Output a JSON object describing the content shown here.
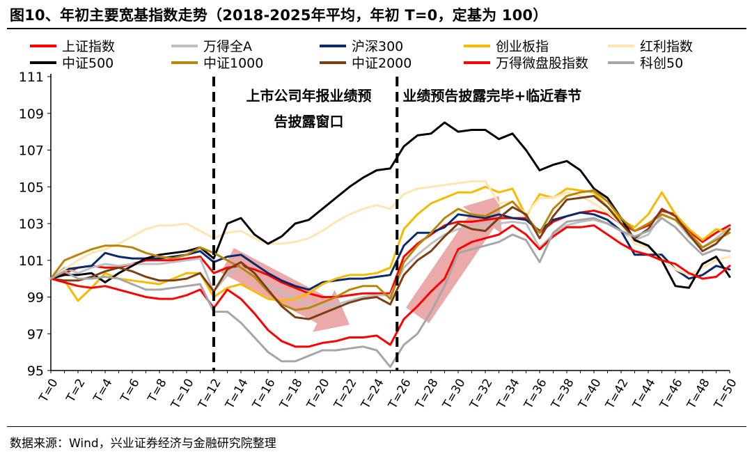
{
  "title": "图10、年初主要宽基指数走势（2018-2025年平均，年初 T=0，定基为 100）",
  "source": "数据来源：Wind，兴业证券经济与金融研究院整理",
  "chart_data": {
    "type": "line",
    "title": "图10、年初主要宽基指数走势（2018-2025年平均，年初 T=0，定基为 100）",
    "xlabel": "",
    "ylabel": "",
    "ylim": [
      95,
      111
    ],
    "yticks": [
      95,
      97,
      99,
      101,
      103,
      105,
      107,
      109,
      111
    ],
    "x": [
      "T=0",
      "T=1",
      "T=2",
      "T=3",
      "T=4",
      "T=5",
      "T=6",
      "T=7",
      "T=8",
      "T=9",
      "T=10",
      "T=11",
      "T=12",
      "T=13",
      "T=14",
      "T=15",
      "T=16",
      "T=17",
      "T=18",
      "T=19",
      "T=20",
      "T=21",
      "T=22",
      "T=23",
      "T=24",
      "T=25",
      "T=26",
      "T=27",
      "T=28",
      "T=29",
      "T=30",
      "T=31",
      "T=32",
      "T=33",
      "T=34",
      "T=35",
      "T=36",
      "T=37",
      "T=38",
      "T=39",
      "T=40",
      "T=41",
      "T=42",
      "T=43",
      "T=44",
      "T=45",
      "T=46",
      "T=47",
      "T=48",
      "T=49",
      "T=50"
    ],
    "xtick_labels": [
      "T=0",
      "T=2",
      "T=4",
      "T=6",
      "T=8",
      "T=10",
      "T=12",
      "T=14",
      "T=16",
      "T=18",
      "T=20",
      "T=22",
      "T=24",
      "T=26",
      "T=28",
      "T=30",
      "T=32",
      "T=34",
      "T=36",
      "T=38",
      "T=40",
      "T=42",
      "T=44",
      "T=46",
      "T=48",
      "T=50"
    ],
    "grid": false,
    "legend": "top",
    "vlines": [
      12,
      25.5
    ],
    "annotations": [
      {
        "text": "上市公司年报业绩预",
        "x": 19,
        "y": 110
      },
      {
        "text": "告披露窗口",
        "x": 19,
        "y": 108.6
      },
      {
        "text": "业绩预告披露完毕+临近春节",
        "x": 32.5,
        "y": 110
      }
    ],
    "arrows": [
      {
        "color": "#e79a9a",
        "from": [
          13,
          101
        ],
        "to": [
          22,
          97.5
        ]
      },
      {
        "color": "#e79a9a",
        "from": [
          27,
          98
        ],
        "to": [
          33,
          104.5
        ]
      }
    ],
    "series": [
      {
        "name": "上证指数",
        "color": "#ff0000",
        "width": 3,
        "values": [
          100,
          100.3,
          100.6,
          100.7,
          100.6,
          100.6,
          100.8,
          101.0,
          101.0,
          101.0,
          101.1,
          101.2,
          100.3,
          100.6,
          100.7,
          100.5,
          100.2,
          99.8,
          99.5,
          99.2,
          99.0,
          99.0,
          99.1,
          99.2,
          99.2,
          99.2,
          101.2,
          101.9,
          102.4,
          102.9,
          103.1,
          103.1,
          103.2,
          103.3,
          103.3,
          103.3,
          102.5,
          103.1,
          103.4,
          103.6,
          103.7,
          103.5,
          103.0,
          102.6,
          102.9,
          103.7,
          103.5,
          102.6,
          102.0,
          102.5,
          102.9
        ]
      },
      {
        "name": "万得全A",
        "color": "#bfbfbf",
        "width": 3,
        "values": [
          100,
          100.6,
          100.3,
          100.6,
          100.8,
          100.7,
          100.8,
          100.8,
          100.8,
          100.9,
          101.0,
          101.1,
          99.3,
          100.2,
          100.7,
          100.1,
          99.6,
          99.3,
          98.9,
          98.6,
          98.5,
          98.6,
          98.8,
          99.0,
          99.1,
          99.1,
          100.6,
          101.3,
          101.9,
          102.4,
          102.7,
          102.8,
          102.9,
          103.0,
          103.1,
          103.0,
          101.7,
          102.4,
          102.9,
          103.1,
          103.2,
          103.0,
          102.6,
          102.1,
          102.4,
          103.5,
          103.2,
          102.3,
          101.7,
          102.2,
          102.8
        ]
      },
      {
        "name": "沪深300",
        "color": "#0b2a6b",
        "width": 3,
        "values": [
          100,
          100.5,
          100.6,
          100.7,
          101.4,
          101.2,
          101.1,
          101.1,
          101.1,
          101.2,
          101.3,
          101.5,
          100.9,
          101.2,
          101.3,
          100.8,
          100.3,
          99.9,
          99.6,
          99.4,
          99.8,
          99.9,
          100.0,
          100.0,
          100.1,
          100.2,
          101.8,
          102.5,
          102.5,
          102.8,
          103.5,
          103.4,
          103.3,
          103.5,
          103.3,
          103.2,
          102.6,
          103.2,
          103.4,
          103.6,
          103.5,
          103.2,
          102.6,
          101.3,
          101.3,
          101.3,
          100.5,
          100.0,
          100.2,
          100.7,
          100.5
        ]
      },
      {
        "name": "创业板指",
        "color": "#f4bb00",
        "width": 3,
        "values": [
          100,
          99.9,
          98.8,
          99.5,
          100.3,
          100.0,
          99.9,
          99.8,
          99.7,
          100.0,
          100.3,
          100.3,
          99.0,
          99.5,
          99.7,
          99.3,
          98.9,
          98.8,
          98.9,
          99.2,
          99.7,
          100.0,
          100.2,
          100.2,
          100.3,
          100.6,
          102.7,
          103.5,
          104.1,
          104.4,
          104.7,
          104.7,
          105.0,
          104.7,
          104.9,
          103.4,
          104.6,
          104.4,
          104.9,
          104.8,
          104.7,
          103.9,
          103.2,
          102.8,
          103.5,
          104.7,
          103.5,
          102.7,
          102.1,
          102.7,
          102.5
        ]
      },
      {
        "name": "红利指数",
        "color": "#fde6b2",
        "width": 3,
        "values": [
          100,
          100.5,
          101.0,
          101.4,
          101.6,
          101.9,
          102.3,
          102.7,
          102.9,
          102.9,
          103.0,
          102.6,
          102.2,
          102.5,
          102.6,
          102.2,
          101.9,
          101.9,
          102.0,
          102.2,
          102.6,
          103.1,
          103.5,
          103.8,
          104.0,
          103.8,
          104.6,
          104.9,
          105.0,
          105.1,
          105.2,
          105.3,
          105.3,
          104.1,
          104.2,
          103.5,
          104.4,
          104.4,
          104.7,
          104.5,
          104.1,
          103.6,
          103.0,
          101.9,
          101.7,
          101.1,
          100.5,
          100.2,
          100.6,
          101.0,
          101.2
        ]
      },
      {
        "name": "中证500",
        "color": "#000000",
        "width": 3,
        "values": [
          100,
          100.2,
          100.2,
          100.3,
          99.8,
          100.3,
          100.7,
          101.1,
          101.3,
          101.4,
          101.5,
          101.7,
          101.1,
          103.0,
          103.3,
          102.4,
          101.9,
          102.3,
          103.0,
          103.2,
          103.8,
          104.4,
          105.0,
          105.5,
          105.9,
          106.0,
          107.2,
          107.8,
          107.9,
          108.5,
          108.0,
          108.1,
          108.1,
          107.6,
          107.9,
          107.0,
          105.9,
          106.2,
          106.4,
          105.9,
          104.9,
          104.4,
          103.3,
          102.1,
          101.8,
          101.0,
          99.6,
          99.5,
          100.8,
          101.2,
          100.1
        ]
      },
      {
        "name": "中证1000",
        "color": "#b8860b",
        "width": 3,
        "values": [
          100,
          101.0,
          101.3,
          101.6,
          101.8,
          101.8,
          101.7,
          101.4,
          101.2,
          101.1,
          101.3,
          101.7,
          101.4,
          101.0,
          100.6,
          100.1,
          99.3,
          98.6,
          98.3,
          98.4,
          98.7,
          99.0,
          99.4,
          99.6,
          99.6,
          98.9,
          100.9,
          101.8,
          102.5,
          103.3,
          103.8,
          103.5,
          103.4,
          103.8,
          104.2,
          103.4,
          102.5,
          103.8,
          104.5,
          104.7,
          104.8,
          104.2,
          103.3,
          102.6,
          103.0,
          103.5,
          103.2,
          102.5,
          101.7,
          102.1,
          102.5
        ]
      },
      {
        "name": "中证2000",
        "color": "#7b3f15",
        "width": 3,
        "values": [
          100,
          99.9,
          99.9,
          100.1,
          100.4,
          100.6,
          100.4,
          100.1,
          99.9,
          99.9,
          100.0,
          100.3,
          99.3,
          100.5,
          100.9,
          100.3,
          99.4,
          98.5,
          97.9,
          97.8,
          98.1,
          98.4,
          98.7,
          98.9,
          99.0,
          98.6,
          100.2,
          101.0,
          101.5,
          102.3,
          103.0,
          102.7,
          102.6,
          103.3,
          103.9,
          103.5,
          102.2,
          103.4,
          104.3,
          104.4,
          104.5,
          103.9,
          103.0,
          102.2,
          102.7,
          103.8,
          103.4,
          102.4,
          101.5,
          101.9,
          102.7
        ]
      },
      {
        "name": "万得微盘股指数",
        "color": "#ff0000",
        "width": 3,
        "values": [
          100,
          99.8,
          99.6,
          99.5,
          99.6,
          99.4,
          99.2,
          99.0,
          98.9,
          98.9,
          99.1,
          99.4,
          98.4,
          99.4,
          98.9,
          98.1,
          97.2,
          96.6,
          96.3,
          96.3,
          96.5,
          96.6,
          96.8,
          96.8,
          96.9,
          96.4,
          97.8,
          98.5,
          99.3,
          100.0,
          101.6,
          102.0,
          102.2,
          102.4,
          102.9,
          102.4,
          101.6,
          102.3,
          102.8,
          102.8,
          102.9,
          102.4,
          101.9,
          101.5,
          101.3,
          101.0,
          100.8,
          100.3,
          100.0,
          100.1,
          100.7
        ]
      },
      {
        "name": "科创50",
        "color": "#a6a6a6",
        "width": 3,
        "values": [
          100,
          100.4,
          100.0,
          100.0,
          100.1,
          100.0,
          99.7,
          99.4,
          99.4,
          99.5,
          99.6,
          99.7,
          98.2,
          98.2,
          97.6,
          96.8,
          96.0,
          95.5,
          95.5,
          95.8,
          96.1,
          96.1,
          96.2,
          96.3,
          96.1,
          95.2,
          96.4,
          97.0,
          98.2,
          99.6,
          101.4,
          101.6,
          101.8,
          102.0,
          102.4,
          102.1,
          100.9,
          102.5,
          103.1,
          103.2,
          103.3,
          103.0,
          102.6,
          102.3,
          102.6,
          103.3,
          102.8,
          102.0,
          101.3,
          101.6,
          101.5
        ]
      }
    ]
  }
}
